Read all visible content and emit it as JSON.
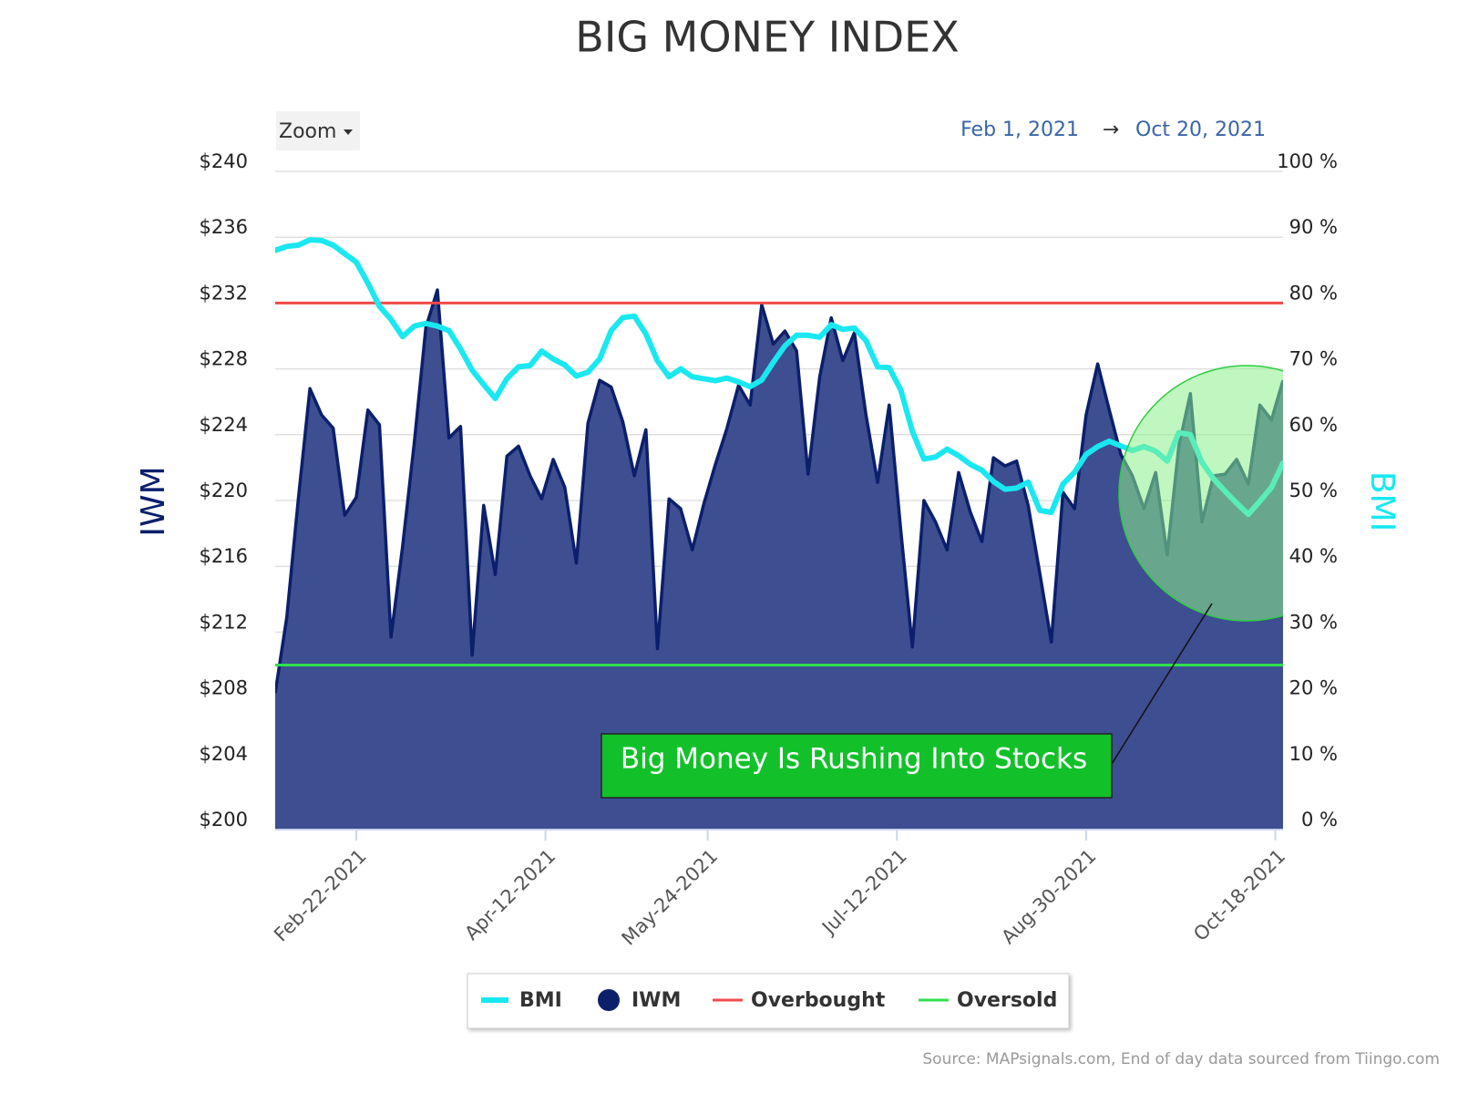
{
  "chart_data": {
    "type": "line",
    "title": "BIG MONEY INDEX",
    "zoom_label": "Zoom",
    "date_range": {
      "from": "Feb 1, 2021",
      "separator": "→",
      "to": "Oct 20, 2021"
    },
    "y_axis_label": "IWM",
    "y2_axis_label": "BMI",
    "source": "Source: MAPsignals.com, End of day data sourced from Tiingo.com",
    "annotation": "Big Money Is Rushing Into Stocks",
    "grid": true,
    "x": [
      "2021-02-01",
      "2021-02-04",
      "2021-02-07",
      "2021-02-10",
      "2021-02-13",
      "2021-02-16",
      "2021-02-19",
      "2021-02-22",
      "2021-02-25",
      "2021-02-28",
      "2021-03-03",
      "2021-03-06",
      "2021-03-09",
      "2021-03-12",
      "2021-03-15",
      "2021-03-18",
      "2021-03-21",
      "2021-03-24",
      "2021-03-27",
      "2021-03-30",
      "2021-04-02",
      "2021-04-05",
      "2021-04-08",
      "2021-04-11",
      "2021-04-14",
      "2021-04-17",
      "2021-04-20",
      "2021-04-23",
      "2021-04-26",
      "2021-04-29",
      "2021-05-02",
      "2021-05-05",
      "2021-05-08",
      "2021-05-11",
      "2021-05-14",
      "2021-05-17",
      "2021-05-20",
      "2021-05-23",
      "2021-05-26",
      "2021-05-29",
      "2021-06-01",
      "2021-06-04",
      "2021-06-07",
      "2021-06-10",
      "2021-06-13",
      "2021-06-16",
      "2021-06-19",
      "2021-06-22",
      "2021-06-25",
      "2021-06-28",
      "2021-07-01",
      "2021-07-04",
      "2021-07-07",
      "2021-07-10",
      "2021-07-13",
      "2021-07-16",
      "2021-07-19",
      "2021-07-22",
      "2021-07-25",
      "2021-07-28",
      "2021-07-31",
      "2021-08-03",
      "2021-08-06",
      "2021-08-09",
      "2021-08-12",
      "2021-08-15",
      "2021-08-18",
      "2021-08-21",
      "2021-08-24",
      "2021-08-27",
      "2021-08-30",
      "2021-09-02",
      "2021-09-05",
      "2021-09-08",
      "2021-09-11",
      "2021-09-14",
      "2021-09-17",
      "2021-09-20",
      "2021-09-23",
      "2021-09-26",
      "2021-09-29",
      "2021-10-02",
      "2021-10-05",
      "2021-10-08",
      "2021-10-11",
      "2021-10-14",
      "2021-10-17",
      "2021-10-20"
    ],
    "series": [
      {
        "name": "BMI",
        "color": "#19e8f0",
        "axis": "y2",
        "values": [
          88.0,
          88.6,
          88.8,
          89.6,
          89.5,
          88.8,
          87.5,
          86.2,
          83.0,
          79.5,
          77.5,
          74.9,
          76.5,
          76.9,
          76.5,
          75.8,
          73.0,
          69.8,
          67.6,
          65.5,
          68.5,
          70.3,
          70.5,
          72.7,
          71.5,
          70.6,
          68.9,
          69.5,
          71.5,
          75.8,
          77.8,
          78.0,
          75.3,
          71.2,
          68.8,
          70.0,
          68.8,
          68.5,
          68.2,
          68.6,
          68.0,
          67.3,
          68.3,
          71.0,
          73.5,
          75.1,
          75.1,
          74.8,
          76.7,
          76.0,
          76.2,
          74.3,
          70.3,
          70.2,
          66.8,
          60.5,
          56.3,
          56.6,
          57.8,
          56.8,
          55.5,
          54.6,
          52.9,
          51.7,
          51.9,
          52.8,
          48.5,
          48.2,
          52.5,
          54.3,
          57.0,
          58.2,
          59.0,
          58.3,
          57.6,
          58.2,
          57.5,
          56.0,
          60.3,
          60.0,
          55.8,
          53.3,
          51.4,
          49.6,
          47.9,
          49.9,
          52.0,
          55.7
        ]
      },
      {
        "name": "IWM",
        "color": "#0b1f6b",
        "fill": "#3d4e91",
        "style": "area",
        "values": [
          208.3,
          212.9,
          220.1,
          226.8,
          225.2,
          224.4,
          219.1,
          220.2,
          225.5,
          224.6,
          211.7,
          217.2,
          223.5,
          230.5,
          232.8,
          223.8,
          224.5,
          210.6,
          219.7,
          215.5,
          222.7,
          223.3,
          221.5,
          220.1,
          222.5,
          220.8,
          216.2,
          224.7,
          227.3,
          226.9,
          224.8,
          221.5,
          224.3,
          211.0,
          220.1,
          219.5,
          217.0,
          219.8,
          222.2,
          224.4,
          227.0,
          225.8,
          231.9,
          229.5,
          230.3,
          229.1,
          221.6,
          227.5,
          231.1,
          228.5,
          230.2,
          225.2,
          221.1,
          225.8,
          218.2,
          211.1,
          220.0,
          218.7,
          217.0,
          221.7,
          219.3,
          217.5,
          222.6,
          222.1,
          222.4,
          219.7,
          215.6,
          211.4,
          220.5,
          219.5,
          225.2,
          228.3,
          225.5,
          222.8,
          221.5,
          219.5,
          221.7,
          216.7,
          223.3,
          226.5,
          218.7,
          221.5,
          221.6,
          222.5,
          221.0,
          225.8,
          224.9,
          227.3
        ]
      }
    ],
    "reference_lines": [
      {
        "name": "Overbought",
        "value": 80,
        "color": "#f04a4a",
        "axis": "y2"
      },
      {
        "name": "Oversold",
        "value": 25,
        "color": "#2fe04c",
        "axis": "y2"
      }
    ],
    "xlim": [
      "2021-02-01",
      "2021-10-20"
    ],
    "xticks": [
      {
        "value": "2021-02-22",
        "label": "Feb-22-2021"
      },
      {
        "value": "2021-04-12",
        "label": "Apr-12-2021"
      },
      {
        "value": "2021-05-24",
        "label": "May-24-2021"
      },
      {
        "value": "2021-07-12",
        "label": "Jul-12-2021"
      },
      {
        "value": "2021-08-30",
        "label": "Aug-30-2021"
      },
      {
        "value": "2021-10-18",
        "label": "Oct-18-2021"
      }
    ],
    "ylim": [
      200,
      240
    ],
    "yticks": [
      {
        "value": 200,
        "label": "$200"
      },
      {
        "value": 204,
        "label": "$204"
      },
      {
        "value": 208,
        "label": "$208"
      },
      {
        "value": 212,
        "label": "$212"
      },
      {
        "value": 216,
        "label": "$216"
      },
      {
        "value": 220,
        "label": "$220"
      },
      {
        "value": 224,
        "label": "$224"
      },
      {
        "value": 228,
        "label": "$228"
      },
      {
        "value": 232,
        "label": "$232"
      },
      {
        "value": 236,
        "label": "$236"
      },
      {
        "value": 240,
        "label": "$240"
      }
    ],
    "y2lim": [
      0,
      100
    ],
    "y2ticks": [
      {
        "value": 0,
        "label": "0 %"
      },
      {
        "value": 10,
        "label": "10 %"
      },
      {
        "value": 20,
        "label": "20 %"
      },
      {
        "value": 30,
        "label": "30 %"
      },
      {
        "value": 40,
        "label": "40 %"
      },
      {
        "value": 50,
        "label": "50 %"
      },
      {
        "value": 60,
        "label": "60 %"
      },
      {
        "value": 70,
        "label": "70 %"
      },
      {
        "value": 80,
        "label": "80 %"
      },
      {
        "value": 90,
        "label": "90 %"
      },
      {
        "value": 100,
        "label": "100 %"
      }
    ]
  }
}
